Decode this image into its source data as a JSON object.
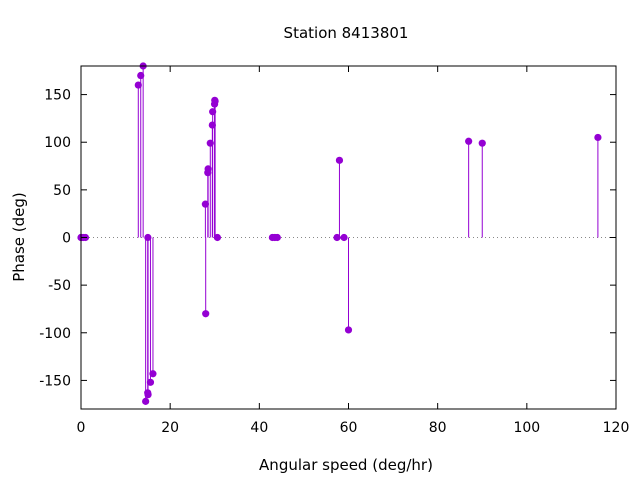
{
  "chart_data": {
    "type": "stem",
    "title": "Station 8413801",
    "xlabel": "Angular speed (deg/hr)",
    "ylabel": "Phase (deg)",
    "xlim": [
      0,
      120
    ],
    "ylim": [
      -180,
      180
    ],
    "xticks": [
      0,
      20,
      40,
      60,
      80,
      100,
      120
    ],
    "yticks": [
      -150,
      -100,
      -50,
      0,
      50,
      100,
      150
    ],
    "grid": false,
    "zero_line": "dotted",
    "series_color": "#9400d3",
    "points": [
      {
        "x": 0.0,
        "y": 0
      },
      {
        "x": 0.04,
        "y": 0
      },
      {
        "x": 0.08,
        "y": 0
      },
      {
        "x": 0.5,
        "y": 0
      },
      {
        "x": 1.0,
        "y": 0
      },
      {
        "x": 12.85,
        "y": 160
      },
      {
        "x": 13.4,
        "y": 170
      },
      {
        "x": 13.94,
        "y": 180
      },
      {
        "x": 14.5,
        "y": -172
      },
      {
        "x": 14.96,
        "y": -163
      },
      {
        "x": 15.0,
        "y": 0
      },
      {
        "x": 15.04,
        "y": -165
      },
      {
        "x": 15.58,
        "y": -152
      },
      {
        "x": 16.14,
        "y": -143
      },
      {
        "x": 27.9,
        "y": 35
      },
      {
        "x": 27.97,
        "y": -80
      },
      {
        "x": 28.44,
        "y": 68
      },
      {
        "x": 28.51,
        "y": 72
      },
      {
        "x": 29.0,
        "y": 99
      },
      {
        "x": 29.46,
        "y": 118
      },
      {
        "x": 29.53,
        "y": 132
      },
      {
        "x": 29.96,
        "y": 140
      },
      {
        "x": 30.0,
        "y": 144
      },
      {
        "x": 30.08,
        "y": 143
      },
      {
        "x": 30.6,
        "y": 0
      },
      {
        "x": 42.93,
        "y": 0
      },
      {
        "x": 43.48,
        "y": 0
      },
      {
        "x": 44.03,
        "y": 0
      },
      {
        "x": 57.42,
        "y": 0
      },
      {
        "x": 57.97,
        "y": 81
      },
      {
        "x": 59.0,
        "y": 0
      },
      {
        "x": 60.0,
        "y": -97
      },
      {
        "x": 86.95,
        "y": 101
      },
      {
        "x": 90.0,
        "y": 99
      },
      {
        "x": 115.94,
        "y": 105
      }
    ]
  }
}
